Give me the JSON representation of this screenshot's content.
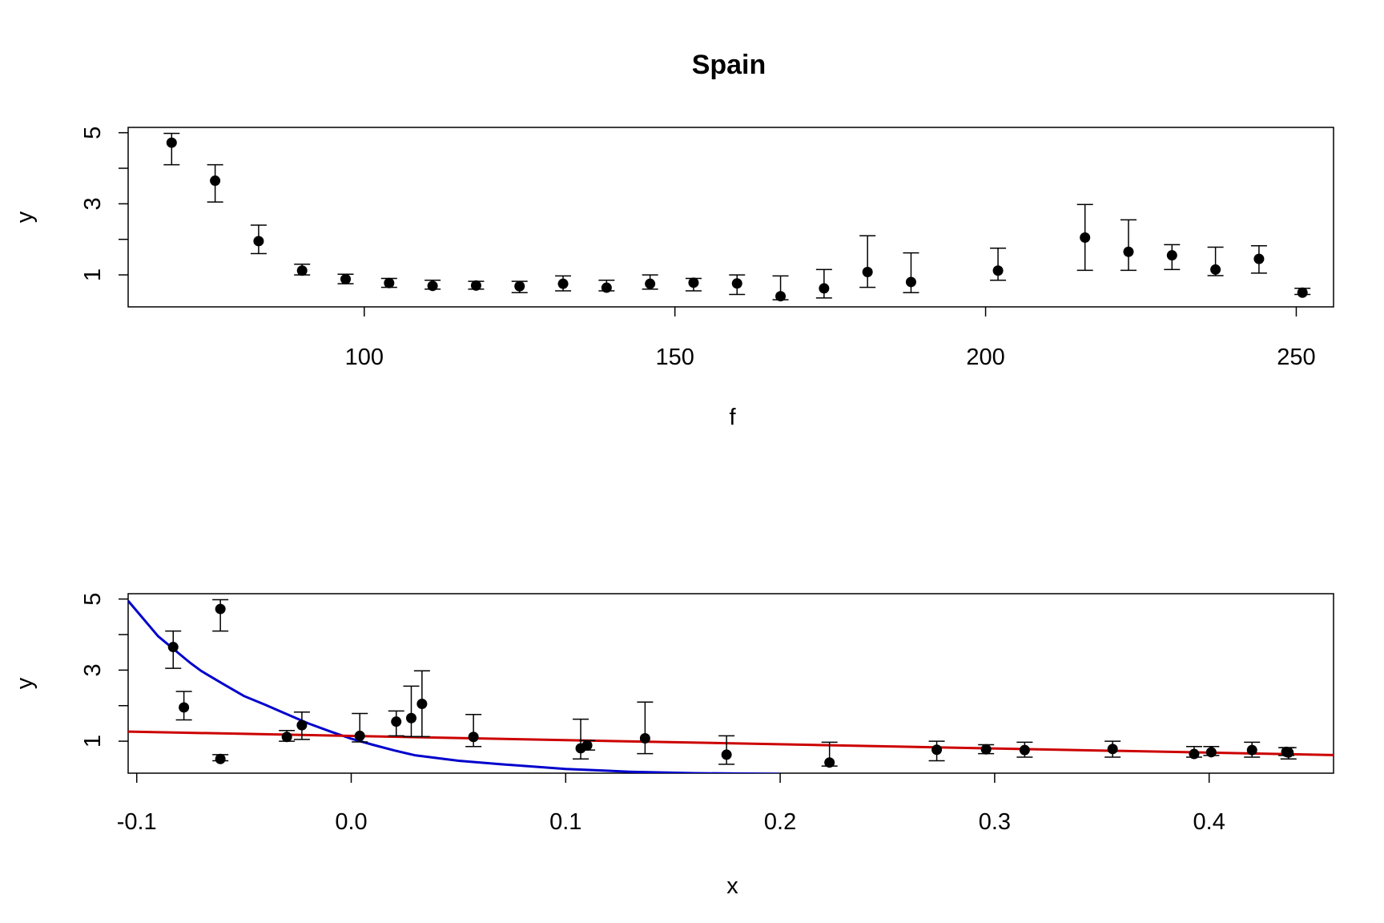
{
  "title": "Spain",
  "chart_data": [
    {
      "type": "scatter",
      "panel": "top",
      "xlabel": "f",
      "ylabel": "y",
      "xlim": [
        62,
        256
      ],
      "ylim": [
        0.1,
        5.15
      ],
      "xticks": [
        100,
        150,
        200,
        250
      ],
      "yticks": [
        1,
        3,
        5
      ],
      "yticks_minor": [
        2,
        4
      ],
      "grid": false,
      "points": [
        {
          "x": 69,
          "y": 4.72,
          "lo": 4.1,
          "hi": 4.98
        },
        {
          "x": 76,
          "y": 3.65,
          "lo": 3.05,
          "hi": 4.1
        },
        {
          "x": 83,
          "y": 1.95,
          "lo": 1.6,
          "hi": 2.4
        },
        {
          "x": 90,
          "y": 1.12,
          "lo": 1.0,
          "hi": 1.3
        },
        {
          "x": 97,
          "y": 0.88,
          "lo": 0.75,
          "hi": 1.02
        },
        {
          "x": 104,
          "y": 0.77,
          "lo": 0.65,
          "hi": 0.9
        },
        {
          "x": 111,
          "y": 0.69,
          "lo": 0.6,
          "hi": 0.85
        },
        {
          "x": 118,
          "y": 0.7,
          "lo": 0.6,
          "hi": 0.82
        },
        {
          "x": 125,
          "y": 0.68,
          "lo": 0.5,
          "hi": 0.82
        },
        {
          "x": 132,
          "y": 0.75,
          "lo": 0.55,
          "hi": 0.97
        },
        {
          "x": 139,
          "y": 0.64,
          "lo": 0.55,
          "hi": 0.85
        },
        {
          "x": 146,
          "y": 0.75,
          "lo": 0.6,
          "hi": 1.0
        },
        {
          "x": 153,
          "y": 0.78,
          "lo": 0.55,
          "hi": 0.9
        },
        {
          "x": 160,
          "y": 0.76,
          "lo": 0.45,
          "hi": 1.0
        },
        {
          "x": 167,
          "y": 0.4,
          "lo": 0.3,
          "hi": 0.97
        },
        {
          "x": 174,
          "y": 0.62,
          "lo": 0.35,
          "hi": 1.15
        },
        {
          "x": 181,
          "y": 1.08,
          "lo": 0.65,
          "hi": 2.1
        },
        {
          "x": 188,
          "y": 0.8,
          "lo": 0.5,
          "hi": 1.62
        },
        {
          "x": 202,
          "y": 1.12,
          "lo": 0.85,
          "hi": 1.75
        },
        {
          "x": 216,
          "y": 2.05,
          "lo": 1.13,
          "hi": 2.98
        },
        {
          "x": 223,
          "y": 1.65,
          "lo": 1.13,
          "hi": 2.55
        },
        {
          "x": 230,
          "y": 1.55,
          "lo": 1.15,
          "hi": 1.85
        },
        {
          "x": 237,
          "y": 1.15,
          "lo": 0.98,
          "hi": 1.78
        },
        {
          "x": 244,
          "y": 1.45,
          "lo": 1.05,
          "hi": 1.82
        },
        {
          "x": 251,
          "y": 0.5,
          "lo": 0.45,
          "hi": 0.62
        }
      ]
    },
    {
      "type": "scatter",
      "panel": "bottom",
      "xlabel": "x",
      "ylabel": "y",
      "xlim": [
        -0.104,
        0.458
      ],
      "ylim": [
        0.1,
        5.15
      ],
      "xticks": [
        -0.1,
        0.0,
        0.1,
        0.2,
        0.3,
        0.4
      ],
      "xtick_labels": [
        "-0.1",
        "0.0",
        "0.1",
        "0.2",
        "0.3",
        "0.4"
      ],
      "yticks": [
        1,
        3,
        5
      ],
      "yticks_minor": [
        2,
        4
      ],
      "grid": false,
      "points": [
        {
          "x": -0.083,
          "y": 3.65,
          "lo": 3.05,
          "hi": 4.1
        },
        {
          "x": -0.078,
          "y": 1.95,
          "lo": 1.6,
          "hi": 2.4
        },
        {
          "x": -0.061,
          "y": 4.72,
          "lo": 4.1,
          "hi": 4.98
        },
        {
          "x": -0.061,
          "y": 0.5,
          "lo": 0.45,
          "hi": 0.62
        },
        {
          "x": -0.03,
          "y": 1.12,
          "lo": 1.0,
          "hi": 1.3
        },
        {
          "x": -0.023,
          "y": 1.45,
          "lo": 1.05,
          "hi": 1.82
        },
        {
          "x": 0.004,
          "y": 1.15,
          "lo": 0.98,
          "hi": 1.78
        },
        {
          "x": 0.021,
          "y": 1.55,
          "lo": 1.15,
          "hi": 1.85
        },
        {
          "x": 0.028,
          "y": 1.65,
          "lo": 1.13,
          "hi": 2.55
        },
        {
          "x": 0.033,
          "y": 2.05,
          "lo": 1.13,
          "hi": 2.98
        },
        {
          "x": 0.057,
          "y": 1.12,
          "lo": 0.85,
          "hi": 1.75
        },
        {
          "x": 0.107,
          "y": 0.8,
          "lo": 0.5,
          "hi": 1.62
        },
        {
          "x": 0.11,
          "y": 0.88,
          "lo": 0.75,
          "hi": 1.02
        },
        {
          "x": 0.137,
          "y": 1.08,
          "lo": 0.65,
          "hi": 2.1
        },
        {
          "x": 0.175,
          "y": 0.62,
          "lo": 0.35,
          "hi": 1.15
        },
        {
          "x": 0.223,
          "y": 0.4,
          "lo": 0.3,
          "hi": 0.97
        },
        {
          "x": 0.273,
          "y": 0.76,
          "lo": 0.45,
          "hi": 1.0
        },
        {
          "x": 0.296,
          "y": 0.77,
          "lo": 0.65,
          "hi": 0.9
        },
        {
          "x": 0.314,
          "y": 0.75,
          "lo": 0.55,
          "hi": 0.97
        },
        {
          "x": 0.355,
          "y": 0.78,
          "lo": 0.55,
          "hi": 1.0
        },
        {
          "x": 0.393,
          "y": 0.64,
          "lo": 0.55,
          "hi": 0.85
        },
        {
          "x": 0.401,
          "y": 0.69,
          "lo": 0.6,
          "hi": 0.85
        },
        {
          "x": 0.42,
          "y": 0.75,
          "lo": 0.55,
          "hi": 0.97
        },
        {
          "x": 0.436,
          "y": 0.7,
          "lo": 0.6,
          "hi": 0.82
        },
        {
          "x": 0.437,
          "y": 0.68,
          "lo": 0.5,
          "hi": 0.82
        }
      ],
      "lines": [
        {
          "color": "#0000cc",
          "x": [
            -0.104,
            -0.09,
            -0.075,
            -0.07,
            -0.06,
            -0.05,
            -0.04,
            -0.03,
            -0.02,
            -0.01,
            0.0,
            0.01,
            0.02,
            0.03,
            0.05,
            0.07,
            0.1,
            0.13,
            0.16,
            0.2
          ],
          "y": [
            4.95,
            3.95,
            3.2,
            2.98,
            2.62,
            2.27,
            2.02,
            1.76,
            1.5,
            1.28,
            1.07,
            0.9,
            0.74,
            0.6,
            0.45,
            0.35,
            0.22,
            0.14,
            0.1,
            0.08
          ]
        },
        {
          "color": "#cc0000",
          "x": [
            -0.104,
            0.458
          ],
          "y": [
            1.27,
            0.61
          ]
        }
      ]
    }
  ]
}
